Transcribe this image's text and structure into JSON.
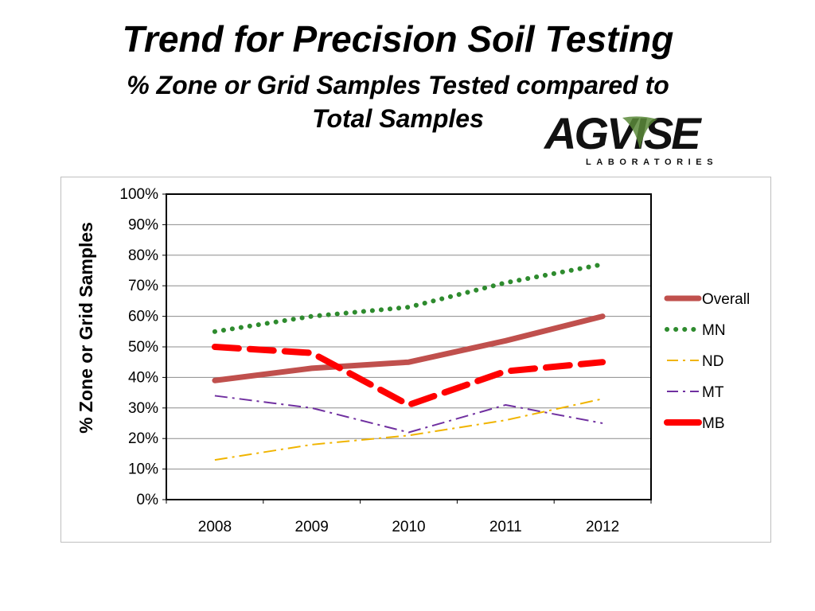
{
  "slide": {
    "title": "Trend for Precision Soil Testing",
    "subtitle_line1": "% Zone or Grid Samples Tested compared to",
    "subtitle_line2": "Total Samples"
  },
  "logo": {
    "word": "AGVISE",
    "sub": "LABORATORIES",
    "colors": {
      "text": "#111111",
      "leaf": "#5a8a3a"
    }
  },
  "chart_data": {
    "type": "line",
    "categories": [
      "2008",
      "2009",
      "2010",
      "2011",
      "2012"
    ],
    "ylabel": "% Zone or Grid Samples",
    "xlabel": "",
    "ylim": [
      0,
      100
    ],
    "yticks": [
      "0%",
      "10%",
      "20%",
      "30%",
      "40%",
      "50%",
      "60%",
      "70%",
      "80%",
      "90%",
      "100%"
    ],
    "grid": true,
    "legend_position": "right",
    "series": [
      {
        "name": "Overall",
        "values": [
          39,
          43,
          45,
          52,
          60
        ],
        "color": "#c0504d",
        "style": "solid"
      },
      {
        "name": "MN",
        "values": [
          55,
          60,
          63,
          71,
          77
        ],
        "color": "#2e8b2e",
        "style": "dotted"
      },
      {
        "name": "ND",
        "values": [
          13,
          18,
          21,
          26,
          33
        ],
        "color": "#f0b400",
        "style": "dashdot"
      },
      {
        "name": "MT",
        "values": [
          34,
          30,
          22,
          31,
          25
        ],
        "color": "#7030a0",
        "style": "dashdot"
      },
      {
        "name": "MB",
        "values": [
          50,
          48,
          31,
          42,
          45
        ],
        "color": "#ff0000",
        "style": "dashed"
      }
    ]
  }
}
